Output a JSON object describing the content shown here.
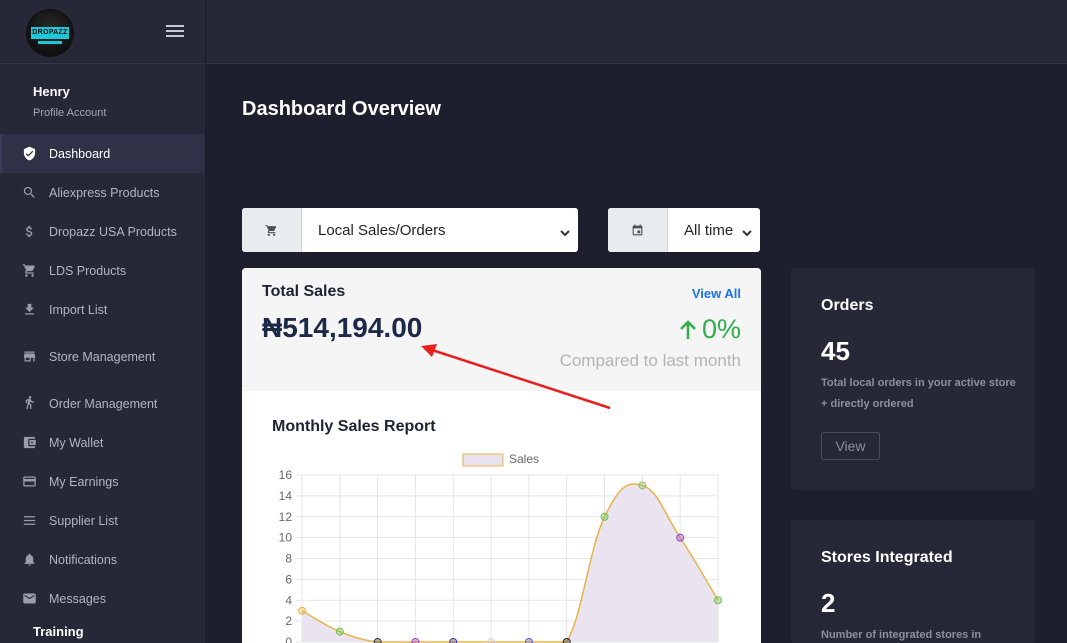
{
  "brand": {
    "logo_text": "DROPAZZ"
  },
  "profile": {
    "name": "Henry",
    "subtitle": "Profile Account"
  },
  "sidebar": {
    "items": [
      {
        "label": "Dashboard",
        "icon": "shield-icon",
        "active": true
      },
      {
        "label": "Aliexpress Products",
        "icon": "search-icon"
      },
      {
        "label": "Dropazz USA Products",
        "icon": "dollar-icon"
      },
      {
        "label": "LDS Products",
        "icon": "cart-icon"
      },
      {
        "label": "Import List",
        "icon": "download-icon"
      },
      {
        "label": "Store Management",
        "icon": "store-icon"
      },
      {
        "label": "Order Management",
        "icon": "delivery-icon"
      },
      {
        "label": "My Wallet",
        "icon": "wallet-icon"
      },
      {
        "label": "My Earnings",
        "icon": "credit-card-icon"
      },
      {
        "label": "Supplier List",
        "icon": "list-icon"
      },
      {
        "label": "Notifications",
        "icon": "bell-icon"
      },
      {
        "label": "Messages",
        "icon": "mail-icon"
      }
    ],
    "section_label": "Training"
  },
  "main": {
    "title": "Dashboard Overview",
    "sales_filter": {
      "value": "Local Sales/Orders",
      "icon": "cart-icon"
    },
    "period_filter": {
      "value": "All time",
      "icon": "calendar-icon"
    }
  },
  "total_sales": {
    "title": "Total Sales",
    "view_all": "View All",
    "amount": "₦514,194.00",
    "percent": "0%",
    "trend": "up",
    "comparison": "Compared to last month",
    "arrow_color": "#e8201e"
  },
  "chart_data": {
    "type": "line",
    "title": "Monthly Sales Report",
    "legend": [
      "Sales"
    ],
    "legend_position": "top-center",
    "ylim": [
      0,
      16
    ],
    "yticks": [
      "16",
      "14",
      "12",
      "10",
      "8",
      "6",
      "4",
      "2",
      "0"
    ],
    "grid": true,
    "series": [
      {
        "name": "Sales",
        "values": [
          3,
          1,
          0,
          0,
          0,
          0,
          0,
          0,
          12,
          15,
          10,
          4
        ],
        "line_color": "#e8b34a",
        "fill_color": "#e8e1f0"
      }
    ],
    "point_colors": [
      "#e8b34a",
      "#6cc04a",
      "#333333",
      "#9b3fd1",
      "#3a3aa0",
      "#d4d4d4",
      "#5a5ad0",
      "#222222",
      "#6cc04a",
      "#8fbf6a",
      "#9b3fd1",
      "#6cc04a"
    ]
  },
  "orders_card": {
    "title": "Orders",
    "value": "45",
    "description": "Total local orders in your active store + directly ordered",
    "button": "View"
  },
  "stores_card": {
    "title": "Stores Integrated",
    "value": "2",
    "description": "Number of integrated stores in"
  }
}
